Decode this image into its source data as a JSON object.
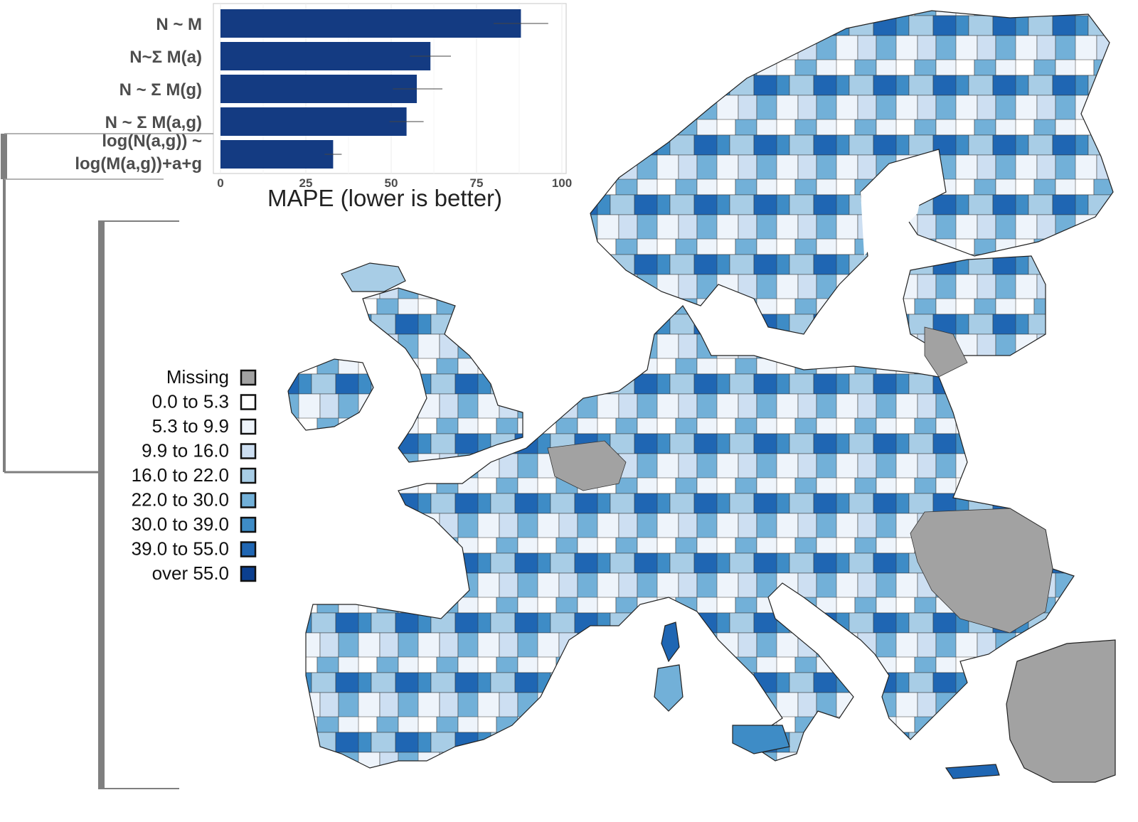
{
  "chart_data": [
    {
      "type": "bar",
      "orientation": "horizontal",
      "categories": [
        "N ~ M",
        "N~Σ M(a)",
        "N ~ Σ M(g)",
        "N ~ Σ M(a,g)",
        "log(N(a,g)) ~\nlog(M(a,g))+a+g"
      ],
      "values": [
        88,
        61.5,
        57.5,
        54.5,
        33
      ],
      "error": [
        {
          "low": 80,
          "high": 96
        },
        {
          "low": 55.5,
          "high": 67.5
        },
        {
          "low": 50.5,
          "high": 65
        },
        {
          "low": 49.5,
          "high": 59.5
        },
        {
          "low": 30.5,
          "high": 35.5
        }
      ],
      "xlabel": "MAPE (lower is better)",
      "xlim": [
        0,
        100
      ],
      "xticks": [
        0,
        25,
        50,
        75,
        100
      ],
      "bar_color": "#143b82",
      "grid": true
    },
    {
      "type": "choropleth",
      "legend": [
        {
          "label": "Missing",
          "color": "#a2a2a2"
        },
        {
          "label": "0.0 to  5.3",
          "color": "#ffffff"
        },
        {
          "label": "5.3 to  9.9",
          "color": "#eef4fb"
        },
        {
          "label": "9.9 to 16.0",
          "color": "#cddff2"
        },
        {
          "label": "16.0 to 22.0",
          "color": "#a8cde6"
        },
        {
          "label": "22.0 to 30.0",
          "color": "#72b0d8"
        },
        {
          "label": "30.0 to 39.0",
          "color": "#3e8cc6"
        },
        {
          "label": "39.0 to 55.0",
          "color": "#1f66b3"
        },
        {
          "label": "over 55.0",
          "color": "#0b3f8f"
        }
      ],
      "legend_placement": "left"
    }
  ]
}
